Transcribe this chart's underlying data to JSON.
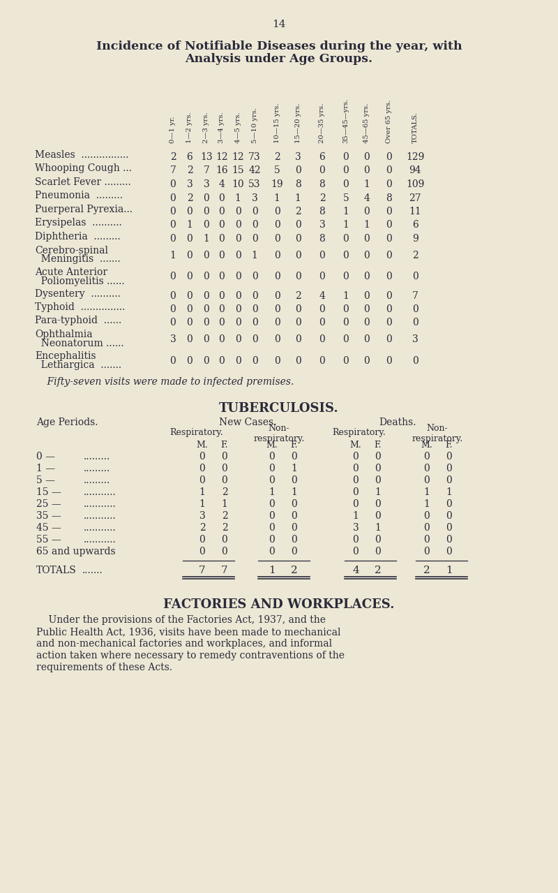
{
  "bg_color": "#ede8d5",
  "text_color": "#2a2a3a",
  "page_number": "14",
  "title_line1": "Incidence of Notifiable Diseases during the year, with",
  "title_line2": "Analysis under Age Groups.",
  "col_headers": [
    "0—1 yr.",
    "1—2 yrs.",
    "2—3 yrs.",
    "3—4 yrs.",
    "4—5 yrs.",
    "5—10 yrs.",
    "10—15 yrs.",
    "15—20 yrs.",
    "20—35 yrs.",
    "35—45—yrs.",
    "45—65 yrs.",
    "Over 65 yrs.",
    "TOTALS."
  ],
  "col_positions": [
    248,
    272,
    296,
    318,
    341,
    365,
    397,
    427,
    462,
    496,
    526,
    557,
    595
  ],
  "disease_rows": [
    {
      "name": "Measles  ................",
      "values": [
        2,
        6,
        13,
        12,
        12,
        73,
        2,
        3,
        6,
        0,
        0,
        0,
        129
      ]
    },
    {
      "name": "Whooping Cough ...",
      "values": [
        7,
        2,
        7,
        16,
        15,
        42,
        5,
        0,
        0,
        0,
        0,
        0,
        94
      ]
    },
    {
      "name": "Scarlet Fever .........",
      "values": [
        0,
        3,
        3,
        4,
        10,
        53,
        19,
        8,
        8,
        0,
        1,
        0,
        109
      ]
    },
    {
      "name": "Pneumonia  .........",
      "values": [
        0,
        2,
        0,
        0,
        1,
        3,
        1,
        1,
        2,
        5,
        4,
        8,
        27
      ]
    },
    {
      "name": "Puerperal Pyrexia...",
      "values": [
        0,
        0,
        0,
        0,
        0,
        0,
        0,
        2,
        8,
        1,
        0,
        0,
        11
      ]
    },
    {
      "name": "Erysipelas  ..........",
      "values": [
        0,
        1,
        0,
        0,
        0,
        0,
        0,
        0,
        3,
        1,
        1,
        0,
        6
      ]
    },
    {
      "name": "Diphtheria  .........",
      "values": [
        0,
        0,
        1,
        0,
        0,
        0,
        0,
        0,
        8,
        0,
        0,
        0,
        9
      ]
    },
    {
      "name_line1": "Cerebro-spinal",
      "name_line2": "  Meningitis  .......",
      "values": [
        1,
        0,
        0,
        0,
        0,
        1,
        0,
        0,
        0,
        0,
        0,
        0,
        2
      ]
    },
    {
      "name_line1": "Acute Anterior",
      "name_line2": "  Poliomyelitis ......",
      "values": [
        0,
        0,
        0,
        0,
        0,
        0,
        0,
        0,
        0,
        0,
        0,
        0,
        0
      ]
    },
    {
      "name": "Dysentery  ..........",
      "values": [
        0,
        0,
        0,
        0,
        0,
        0,
        0,
        2,
        4,
        1,
        0,
        0,
        7
      ]
    },
    {
      "name": "Typhoid  ...............",
      "values": [
        0,
        0,
        0,
        0,
        0,
        0,
        0,
        0,
        0,
        0,
        0,
        0,
        0
      ]
    },
    {
      "name": "Para-typhoid  ......",
      "values": [
        0,
        0,
        0,
        0,
        0,
        0,
        0,
        0,
        0,
        0,
        0,
        0,
        0
      ]
    },
    {
      "name_line1": "Ophthalmia",
      "name_line2": "  Neonatorum ......",
      "values": [
        3,
        0,
        0,
        0,
        0,
        0,
        0,
        0,
        0,
        0,
        0,
        0,
        3
      ]
    },
    {
      "name_line1": "Encephalitis",
      "name_line2": "  Lethargica  .......",
      "values": [
        0,
        0,
        0,
        0,
        0,
        0,
        0,
        0,
        0,
        0,
        0,
        0,
        0
      ]
    }
  ],
  "fifty_seven_note": "    Fifty-seven visits were made to infected premises.",
  "tb_title": "TUBERCULOSIS.",
  "tb_rows": [
    {
      "age": "0 —",
      "dots": ".........",
      "nc_resp_m": 0,
      "nc_resp_f": 0,
      "nc_nonresp_m": 0,
      "nc_nonresp_f": 0,
      "d_resp_m": 0,
      "d_resp_f": 0,
      "d_nonresp_m": 0,
      "d_nonresp_f": 0
    },
    {
      "age": "1 —",
      "dots": ".........",
      "nc_resp_m": 0,
      "nc_resp_f": 0,
      "nc_nonresp_m": 0,
      "nc_nonresp_f": 1,
      "d_resp_m": 0,
      "d_resp_f": 0,
      "d_nonresp_m": 0,
      "d_nonresp_f": 0
    },
    {
      "age": "5 —",
      "dots": ".........",
      "nc_resp_m": 0,
      "nc_resp_f": 0,
      "nc_nonresp_m": 0,
      "nc_nonresp_f": 0,
      "d_resp_m": 0,
      "d_resp_f": 0,
      "d_nonresp_m": 0,
      "d_nonresp_f": 0
    },
    {
      "age": "15 —",
      "dots": "...........",
      "nc_resp_m": 1,
      "nc_resp_f": 2,
      "nc_nonresp_m": 1,
      "nc_nonresp_f": 1,
      "d_resp_m": 0,
      "d_resp_f": 1,
      "d_nonresp_m": 1,
      "d_nonresp_f": 1
    },
    {
      "age": "25 —",
      "dots": "...........",
      "nc_resp_m": 1,
      "nc_resp_f": 1,
      "nc_nonresp_m": 0,
      "nc_nonresp_f": 0,
      "d_resp_m": 0,
      "d_resp_f": 0,
      "d_nonresp_m": 1,
      "d_nonresp_f": 0
    },
    {
      "age": "35 —",
      "dots": "...........",
      "nc_resp_m": 3,
      "nc_resp_f": 2,
      "nc_nonresp_m": 0,
      "nc_nonresp_f": 0,
      "d_resp_m": 1,
      "d_resp_f": 0,
      "d_nonresp_m": 0,
      "d_nonresp_f": 0
    },
    {
      "age": "45 —",
      "dots": "...........",
      "nc_resp_m": 2,
      "nc_resp_f": 2,
      "nc_nonresp_m": 0,
      "nc_nonresp_f": 0,
      "d_resp_m": 3,
      "d_resp_f": 1,
      "d_nonresp_m": 0,
      "d_nonresp_f": 0
    },
    {
      "age": "55 —",
      "dots": "...........",
      "nc_resp_m": 0,
      "nc_resp_f": 0,
      "nc_nonresp_m": 0,
      "nc_nonresp_f": 0,
      "d_resp_m": 0,
      "d_resp_f": 0,
      "d_nonresp_m": 0,
      "d_nonresp_f": 0
    },
    {
      "age": "65 and upwards",
      "dots": "",
      "nc_resp_m": 0,
      "nc_resp_f": 0,
      "nc_nonresp_m": 0,
      "nc_nonresp_f": 0,
      "d_resp_m": 0,
      "d_resp_f": 0,
      "d_nonresp_m": 0,
      "d_nonresp_f": 0
    }
  ],
  "tb_totals": {
    "nc_resp_m": 7,
    "nc_resp_f": 7,
    "nc_nonresp_m": 1,
    "nc_nonresp_f": 2,
    "d_resp_m": 4,
    "d_resp_f": 2,
    "d_nonresp_m": 2,
    "d_nonresp_f": 1
  },
  "mf_positions": [
    290,
    322,
    390,
    422,
    510,
    542,
    612,
    644
  ],
  "factories_title": "FACTORIES AND WORKPLACES.",
  "factories_lines": [
    "    Under the provisions of the Factories Act, 1937, and the",
    "Public Health Act, 1936, visits have been made to mechanical",
    "and non-mechanical factories and workplaces, and informal",
    "action taken where necessary to remedy contraventions of the",
    "requirements of these Acts."
  ]
}
